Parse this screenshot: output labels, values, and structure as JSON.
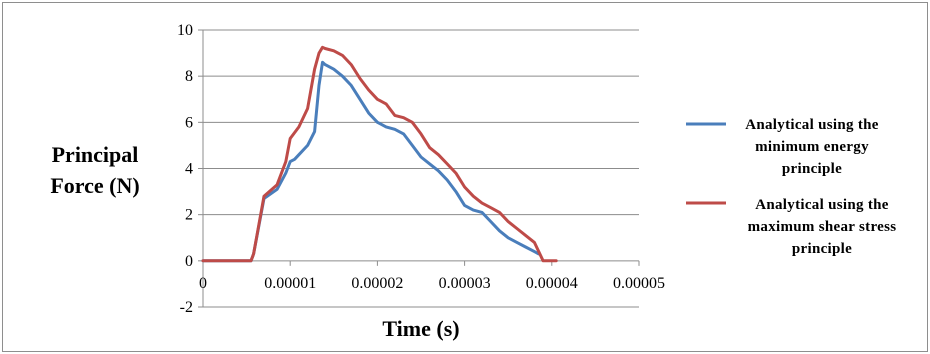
{
  "chart_data": {
    "type": "line",
    "title": "",
    "xlabel": "Time (s)",
    "ylabel_lines": [
      "Principal",
      "Force (N)"
    ],
    "xlim": [
      0,
      5e-05
    ],
    "ylim": [
      -2,
      10
    ],
    "x_ticks": [
      0,
      1e-05,
      2e-05,
      3e-05,
      4e-05,
      5e-05
    ],
    "x_tick_labels": [
      "0",
      "0.00001",
      "0.00002",
      "0.00003",
      "0.00004",
      "0.00005"
    ],
    "y_ticks": [
      -2,
      0,
      2,
      4,
      6,
      8,
      10
    ],
    "y_tick_labels": [
      "-2",
      "0",
      "2",
      "4",
      "6",
      "8",
      "10"
    ],
    "grid": "horizontal",
    "legend_position": "right",
    "series": [
      {
        "name_lines": [
          "Analytical using the",
          "minimum energy",
          "principle"
        ],
        "color": "#4a7ebb",
        "x": [
          0,
          5.5e-06,
          5.8e-06,
          7e-06,
          8.5e-06,
          9.5e-06,
          1e-05,
          1.05e-05,
          1.1e-05,
          1.2e-05,
          1.28e-05,
          1.33e-05,
          1.37e-05,
          1.4e-05,
          1.5e-05,
          1.6e-05,
          1.7e-05,
          1.8e-05,
          1.9e-05,
          2e-05,
          2.1e-05,
          2.2e-05,
          2.3e-05,
          2.4e-05,
          2.5e-05,
          2.6e-05,
          2.7e-05,
          2.8e-05,
          2.9e-05,
          3e-05,
          3.1e-05,
          3.2e-05,
          3.3e-05,
          3.4e-05,
          3.5e-05,
          3.6e-05,
          3.7e-05,
          3.8e-05,
          3.85e-05
        ],
        "y": [
          0,
          0,
          0.3,
          2.7,
          3.1,
          3.8,
          4.3,
          4.4,
          4.6,
          5.0,
          5.6,
          7.6,
          8.6,
          8.5,
          8.3,
          8.0,
          7.6,
          7.0,
          6.4,
          6.0,
          5.8,
          5.7,
          5.5,
          5.0,
          4.5,
          4.2,
          3.9,
          3.5,
          3.0,
          2.4,
          2.2,
          2.1,
          1.7,
          1.3,
          1.0,
          0.8,
          0.6,
          0.4,
          0.3
        ]
      },
      {
        "name_lines": [
          "Analytical using the",
          "maximum shear stress",
          "principle"
        ],
        "color": "#be4b48",
        "x": [
          0,
          5.5e-06,
          5.8e-06,
          7e-06,
          8.5e-06,
          9.5e-06,
          1e-05,
          1.1e-05,
          1.2e-05,
          1.28e-05,
          1.33e-05,
          1.37e-05,
          1.4e-05,
          1.5e-05,
          1.6e-05,
          1.7e-05,
          1.8e-05,
          1.9e-05,
          2e-05,
          2.1e-05,
          2.2e-05,
          2.3e-05,
          2.4e-05,
          2.5e-05,
          2.6e-05,
          2.7e-05,
          2.8e-05,
          2.9e-05,
          3e-05,
          3.1e-05,
          3.2e-05,
          3.3e-05,
          3.4e-05,
          3.5e-05,
          3.6e-05,
          3.7e-05,
          3.8e-05,
          3.9e-05,
          4e-05,
          4.05e-05
        ],
        "y": [
          0,
          0,
          0.3,
          2.8,
          3.3,
          4.3,
          5.3,
          5.8,
          6.6,
          8.3,
          9.0,
          9.25,
          9.2,
          9.1,
          8.9,
          8.5,
          7.9,
          7.4,
          7.0,
          6.8,
          6.3,
          6.2,
          6.0,
          5.5,
          4.9,
          4.6,
          4.2,
          3.8,
          3.2,
          2.8,
          2.5,
          2.3,
          2.1,
          1.7,
          1.4,
          1.1,
          0.8,
          0.0,
          0.0,
          0.0
        ]
      }
    ]
  }
}
